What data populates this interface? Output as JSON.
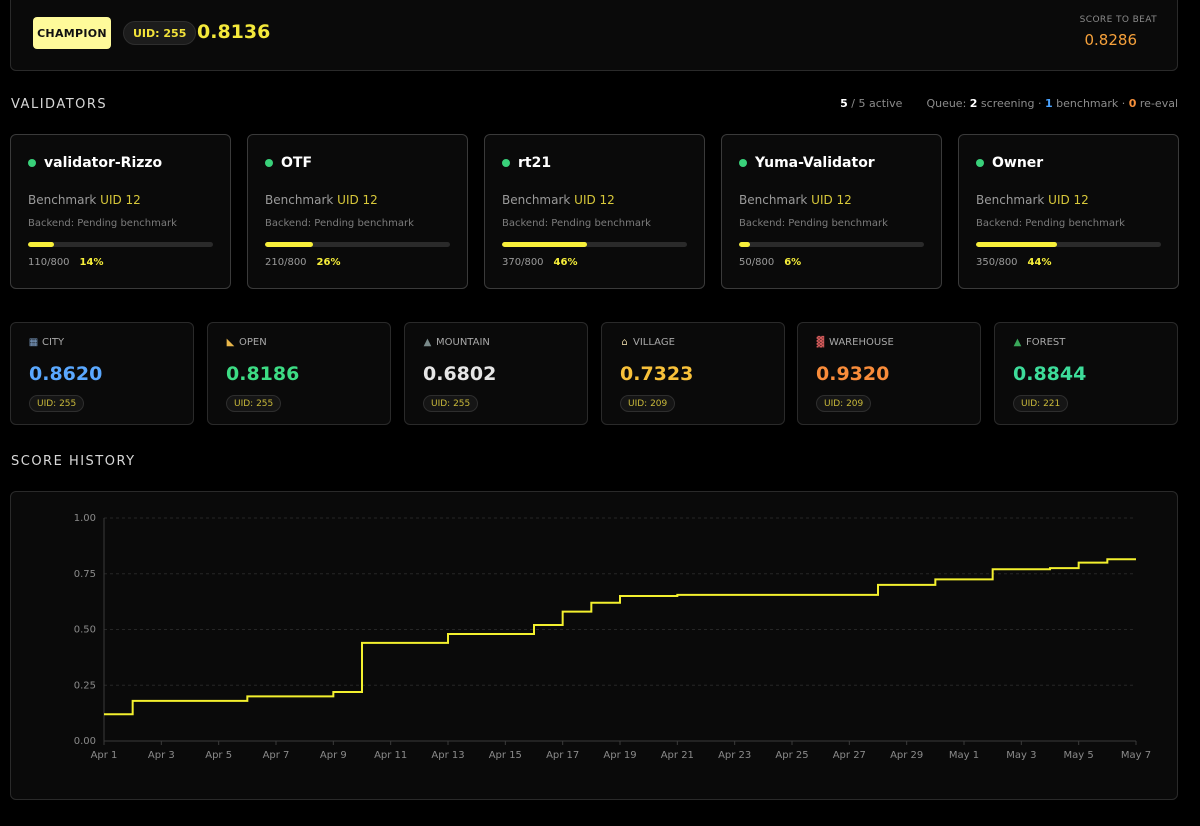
{
  "champion": {
    "badge": "CHAMPION",
    "uid": "UID: 255",
    "score": "0.8136",
    "beat_label": "SCORE TO BEAT",
    "beat_value": "0.8286"
  },
  "validators_section": {
    "title": "VALIDATORS",
    "active_count": "5",
    "active_rest": " / 5 active",
    "queue_prefix": "Queue: ",
    "queue_screening_count": "2",
    "queue_screening_label": " screening · ",
    "queue_benchmark_count": "1",
    "queue_benchmark_label": " benchmark · ",
    "queue_reeval_count": "0",
    "queue_reeval_label": " re-eval"
  },
  "validators": [
    {
      "name": "validator-Rizzo",
      "bench_label": "Benchmark ",
      "bench_uid": "UID 12",
      "backend": "Backend: Pending benchmark",
      "progress_text": "110/800",
      "pct": "14%",
      "progress": 0.14
    },
    {
      "name": "OTF",
      "bench_label": "Benchmark ",
      "bench_uid": "UID 12",
      "backend": "Backend: Pending benchmark",
      "progress_text": "210/800",
      "pct": "26%",
      "progress": 0.26
    },
    {
      "name": "rt21",
      "bench_label": "Benchmark ",
      "bench_uid": "UID 12",
      "backend": "Backend: Pending benchmark",
      "progress_text": "370/800",
      "pct": "46%",
      "progress": 0.46
    },
    {
      "name": "Yuma-Validator",
      "bench_label": "Benchmark ",
      "bench_uid": "UID 12",
      "backend": "Backend: Pending benchmark",
      "progress_text": "50/800",
      "pct": "6%",
      "progress": 0.06
    },
    {
      "name": "Owner",
      "bench_label": "Benchmark ",
      "bench_uid": "UID 12",
      "backend": "Backend: Pending benchmark",
      "progress_text": "350/800",
      "pct": "44%",
      "progress": 0.44
    }
  ],
  "categories": [
    {
      "icon": "city-icon",
      "label": "CITY",
      "value": "0.8620",
      "uid": "UID: 255",
      "color": "#5aa8ff"
    },
    {
      "icon": "landscape-icon",
      "label": "OPEN",
      "value": "0.8186",
      "uid": "UID: 255",
      "color": "#3ddc84"
    },
    {
      "icon": "mountain-icon",
      "label": "MOUNTAIN",
      "value": "0.6802",
      "uid": "UID: 255",
      "color": "#e6e6e6"
    },
    {
      "icon": "houses-icon",
      "label": "VILLAGE",
      "value": "0.7323",
      "uid": "UID: 209",
      "color": "#f8c13a"
    },
    {
      "icon": "factory-icon",
      "label": "WAREHOUSE",
      "value": "0.9320",
      "uid": "UID: 209",
      "color": "#f98c3a"
    },
    {
      "icon": "tree-icon",
      "label": "FOREST",
      "value": "0.8844",
      "uid": "UID: 221",
      "color": "#3ddc9a"
    }
  ],
  "score_history": {
    "title": "SCORE HISTORY"
  },
  "chart_data": {
    "type": "line",
    "step": true,
    "ylim": [
      0,
      1
    ],
    "yticks": [
      "0.00",
      "0.25",
      "0.50",
      "0.75",
      "1.00"
    ],
    "xticks": [
      "Apr 1",
      "Apr 3",
      "Apr 5",
      "Apr 7",
      "Apr 9",
      "Apr 11",
      "Apr 13",
      "Apr 15",
      "Apr 17",
      "Apr 19",
      "Apr 21",
      "Apr 23",
      "Apr 25",
      "Apr 27",
      "Apr 29",
      "May 1",
      "May 3",
      "May 5",
      "May 7"
    ],
    "grid": true,
    "color": "#f3f02e",
    "series": [
      {
        "points": [
          [
            "Apr 1",
            0.12
          ],
          [
            "Apr 2",
            0.18
          ],
          [
            "Apr 6",
            0.19
          ],
          [
            "Apr 6",
            0.2
          ],
          [
            "Apr 9",
            0.2
          ],
          [
            "Apr 9",
            0.22
          ],
          [
            "Apr 10",
            0.22
          ],
          [
            "Apr 10",
            0.44
          ],
          [
            "Apr 13",
            0.44
          ],
          [
            "Apr 13",
            0.48
          ],
          [
            "Apr 16",
            0.48
          ],
          [
            "Apr 16",
            0.52
          ],
          [
            "Apr 17",
            0.52
          ],
          [
            "Apr 17",
            0.58
          ],
          [
            "Apr 18",
            0.58
          ],
          [
            "Apr 18",
            0.62
          ],
          [
            "Apr 19",
            0.62
          ],
          [
            "Apr 19",
            0.65
          ],
          [
            "Apr 21",
            0.65
          ],
          [
            "Apr 21",
            0.655
          ],
          [
            "Apr 28",
            0.655
          ],
          [
            "Apr 28",
            0.7
          ],
          [
            "Apr 30",
            0.7
          ],
          [
            "Apr 30",
            0.725
          ],
          [
            "May 2",
            0.725
          ],
          [
            "May 2",
            0.77
          ],
          [
            "May 4",
            0.775
          ],
          [
            "May 5",
            0.8
          ],
          [
            "May 6",
            0.815
          ],
          [
            "May 7",
            0.815
          ]
        ]
      }
    ]
  }
}
